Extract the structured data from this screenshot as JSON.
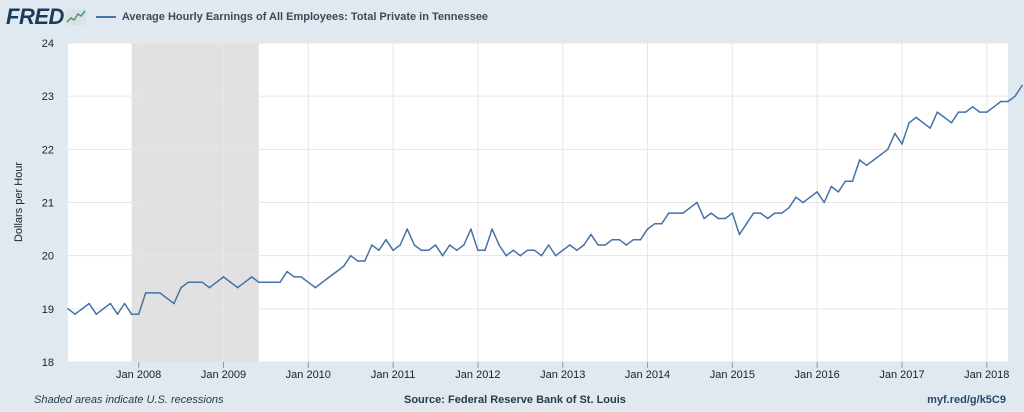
{
  "header": {
    "logo_text": "FRED",
    "legend_label": "Average Hourly Earnings of All Employees: Total Private in Tennessee",
    "line_color": "#4572a7"
  },
  "footer": {
    "recession_note": "Shaded areas indicate U.S. recessions",
    "source": "Source: Federal Reserve Bank of St. Louis",
    "short_url": "myf.red/g/k5C9"
  },
  "chart_data": {
    "type": "line",
    "title": "Average Hourly Earnings of All Employees: Total Private in Tennessee",
    "ylabel": "Dollars per Hour",
    "xlabel": "",
    "ylim": [
      18,
      24
    ],
    "yticks": [
      18,
      19,
      20,
      21,
      22,
      23,
      24
    ],
    "xlim": [
      "2007-03",
      "2018-04"
    ],
    "xticks": [
      {
        "date": "2008-01",
        "label": "Jan 2008"
      },
      {
        "date": "2009-01",
        "label": "Jan 2009"
      },
      {
        "date": "2010-01",
        "label": "Jan 2010"
      },
      {
        "date": "2011-01",
        "label": "Jan 2011"
      },
      {
        "date": "2012-01",
        "label": "Jan 2012"
      },
      {
        "date": "2013-01",
        "label": "Jan 2013"
      },
      {
        "date": "2014-01",
        "label": "Jan 2014"
      },
      {
        "date": "2015-01",
        "label": "Jan 2015"
      },
      {
        "date": "2016-01",
        "label": "Jan 2016"
      },
      {
        "date": "2017-01",
        "label": "Jan 2017"
      },
      {
        "date": "2018-01",
        "label": "Jan 2018"
      }
    ],
    "recessions": [
      {
        "start": "2007-12",
        "end": "2009-06"
      }
    ],
    "grid": true,
    "series": [
      {
        "name": "Average Hourly Earnings of All Employees: Total Private in Tennessee",
        "points": [
          [
            "2007-03",
            19.0
          ],
          [
            "2007-04",
            18.9
          ],
          [
            "2007-05",
            19.0
          ],
          [
            "2007-06",
            19.1
          ],
          [
            "2007-07",
            18.9
          ],
          [
            "2007-08",
            19.0
          ],
          [
            "2007-09",
            19.1
          ],
          [
            "2007-10",
            18.9
          ],
          [
            "2007-11",
            19.1
          ],
          [
            "2007-12",
            18.9
          ],
          [
            "2008-01",
            18.9
          ],
          [
            "2008-02",
            19.3
          ],
          [
            "2008-03",
            19.3
          ],
          [
            "2008-04",
            19.3
          ],
          [
            "2008-05",
            19.2
          ],
          [
            "2008-06",
            19.1
          ],
          [
            "2008-07",
            19.4
          ],
          [
            "2008-08",
            19.5
          ],
          [
            "2008-09",
            19.5
          ],
          [
            "2008-10",
            19.5
          ],
          [
            "2008-11",
            19.4
          ],
          [
            "2008-12",
            19.5
          ],
          [
            "2009-01",
            19.6
          ],
          [
            "2009-02",
            19.5
          ],
          [
            "2009-03",
            19.4
          ],
          [
            "2009-04",
            19.5
          ],
          [
            "2009-05",
            19.6
          ],
          [
            "2009-06",
            19.5
          ],
          [
            "2009-07",
            19.5
          ],
          [
            "2009-08",
            19.5
          ],
          [
            "2009-09",
            19.5
          ],
          [
            "2009-10",
            19.7
          ],
          [
            "2009-11",
            19.6
          ],
          [
            "2009-12",
            19.6
          ],
          [
            "2010-01",
            19.5
          ],
          [
            "2010-02",
            19.4
          ],
          [
            "2010-03",
            19.5
          ],
          [
            "2010-04",
            19.6
          ],
          [
            "2010-05",
            19.7
          ],
          [
            "2010-06",
            19.8
          ],
          [
            "2010-07",
            20.0
          ],
          [
            "2010-08",
            19.9
          ],
          [
            "2010-09",
            19.9
          ],
          [
            "2010-10",
            20.2
          ],
          [
            "2010-11",
            20.1
          ],
          [
            "2010-12",
            20.3
          ],
          [
            "2011-01",
            20.1
          ],
          [
            "2011-02",
            20.2
          ],
          [
            "2011-03",
            20.5
          ],
          [
            "2011-04",
            20.2
          ],
          [
            "2011-05",
            20.1
          ],
          [
            "2011-06",
            20.1
          ],
          [
            "2011-07",
            20.2
          ],
          [
            "2011-08",
            20.0
          ],
          [
            "2011-09",
            20.2
          ],
          [
            "2011-10",
            20.1
          ],
          [
            "2011-11",
            20.2
          ],
          [
            "2011-12",
            20.5
          ],
          [
            "2012-01",
            20.1
          ],
          [
            "2012-02",
            20.1
          ],
          [
            "2012-03",
            20.5
          ],
          [
            "2012-04",
            20.2
          ],
          [
            "2012-05",
            20.0
          ],
          [
            "2012-06",
            20.1
          ],
          [
            "2012-07",
            20.0
          ],
          [
            "2012-08",
            20.1
          ],
          [
            "2012-09",
            20.1
          ],
          [
            "2012-10",
            20.0
          ],
          [
            "2012-11",
            20.2
          ],
          [
            "2012-12",
            20.0
          ],
          [
            "2013-01",
            20.1
          ],
          [
            "2013-02",
            20.2
          ],
          [
            "2013-03",
            20.1
          ],
          [
            "2013-04",
            20.2
          ],
          [
            "2013-05",
            20.4
          ],
          [
            "2013-06",
            20.2
          ],
          [
            "2013-07",
            20.2
          ],
          [
            "2013-08",
            20.3
          ],
          [
            "2013-09",
            20.3
          ],
          [
            "2013-10",
            20.2
          ],
          [
            "2013-11",
            20.3
          ],
          [
            "2013-12",
            20.3
          ],
          [
            "2014-01",
            20.5
          ],
          [
            "2014-02",
            20.6
          ],
          [
            "2014-03",
            20.6
          ],
          [
            "2014-04",
            20.8
          ],
          [
            "2014-05",
            20.8
          ],
          [
            "2014-06",
            20.8
          ],
          [
            "2014-07",
            20.9
          ],
          [
            "2014-08",
            21.0
          ],
          [
            "2014-09",
            20.7
          ],
          [
            "2014-10",
            20.8
          ],
          [
            "2014-11",
            20.7
          ],
          [
            "2014-12",
            20.7
          ],
          [
            "2015-01",
            20.8
          ],
          [
            "2015-02",
            20.4
          ],
          [
            "2015-03",
            20.6
          ],
          [
            "2015-04",
            20.8
          ],
          [
            "2015-05",
            20.8
          ],
          [
            "2015-06",
            20.7
          ],
          [
            "2015-07",
            20.8
          ],
          [
            "2015-08",
            20.8
          ],
          [
            "2015-09",
            20.9
          ],
          [
            "2015-10",
            21.1
          ],
          [
            "2015-11",
            21.0
          ],
          [
            "2015-12",
            21.1
          ],
          [
            "2016-01",
            21.2
          ],
          [
            "2016-02",
            21.0
          ],
          [
            "2016-03",
            21.3
          ],
          [
            "2016-04",
            21.2
          ],
          [
            "2016-05",
            21.4
          ],
          [
            "2016-06",
            21.4
          ],
          [
            "2016-07",
            21.8
          ],
          [
            "2016-08",
            21.7
          ],
          [
            "2016-09",
            21.8
          ],
          [
            "2016-10",
            21.9
          ],
          [
            "2016-11",
            22.0
          ],
          [
            "2016-12",
            22.3
          ],
          [
            "2017-01",
            22.1
          ],
          [
            "2017-02",
            22.5
          ],
          [
            "2017-03",
            22.6
          ],
          [
            "2017-04",
            22.5
          ],
          [
            "2017-05",
            22.4
          ],
          [
            "2017-06",
            22.7
          ],
          [
            "2017-07",
            22.6
          ],
          [
            "2017-08",
            22.5
          ],
          [
            "2017-09",
            22.7
          ],
          [
            "2017-10",
            22.7
          ],
          [
            "2017-11",
            22.8
          ],
          [
            "2017-12",
            22.7
          ],
          [
            "2018-01",
            22.7
          ],
          [
            "2018-02",
            22.8
          ],
          [
            "2018-03",
            22.9
          ],
          [
            "2018-04",
            22.9
          ],
          [
            "2018-05",
            23.0
          ],
          [
            "2018-06",
            23.2
          ]
        ]
      }
    ]
  }
}
